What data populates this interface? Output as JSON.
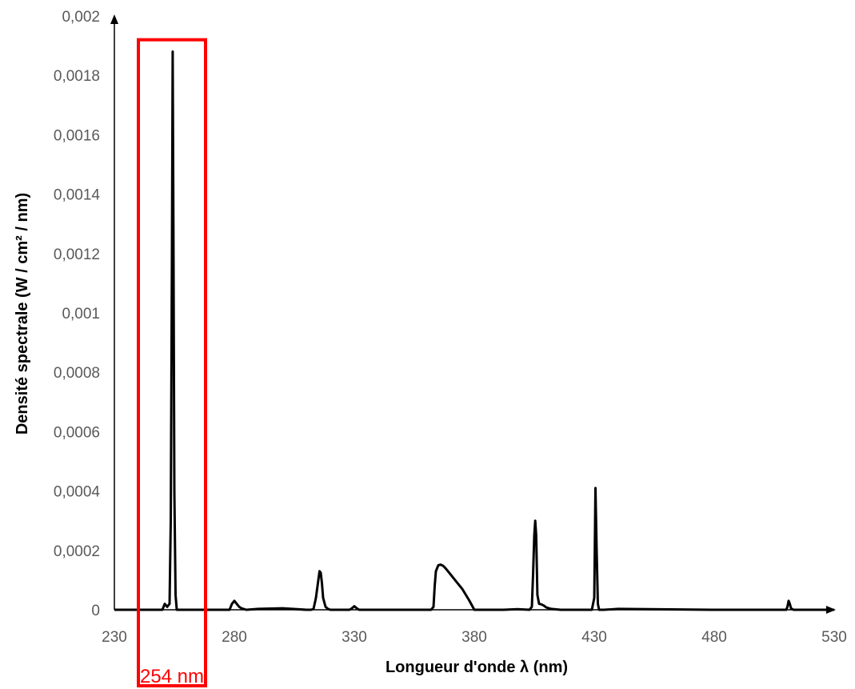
{
  "chart_data": {
    "type": "line",
    "xlabel": "Longueur d'onde λ (nm)",
    "ylabel": "Densité spectrale (W / cm² / nm)",
    "xlim": [
      230,
      530
    ],
    "ylim": [
      0,
      0.002
    ],
    "x_ticks": [
      230,
      280,
      330,
      380,
      430,
      480,
      530
    ],
    "x_tick_labels": [
      "230",
      "280",
      "330",
      "380",
      "430",
      "480",
      "530"
    ],
    "y_ticks": [
      0,
      0.0002,
      0.0004,
      0.0006,
      0.0008,
      0.001,
      0.0012,
      0.0014,
      0.0016,
      0.0018,
      0.002
    ],
    "y_tick_labels": [
      "0",
      "0,0002",
      "0,0004",
      "0,0006",
      "0,0008",
      "0,001",
      "0,0012",
      "0,0014",
      "0,0016",
      "0,0018",
      "0,002"
    ],
    "grid": false,
    "legend": "none",
    "series": [
      {
        "color": "#000000",
        "x": [
          230,
          250,
          251,
          252,
          253,
          253.5,
          254,
          254.3,
          254.6,
          255,
          255.5,
          256,
          257,
          259,
          278,
          279,
          280,
          281,
          282,
          283,
          285,
          290,
          300,
          310,
          312,
          313,
          314,
          315,
          315.5,
          316,
          316.5,
          317,
          318,
          319,
          320,
          328,
          329,
          330,
          331,
          332,
          345,
          362,
          363,
          363.5,
          364,
          365,
          366,
          367,
          368,
          370,
          372,
          375,
          378,
          380,
          392,
          398,
          403,
          404,
          404.5,
          405,
          405.4,
          405.8,
          406.3,
          407,
          408,
          409,
          410,
          412,
          416,
          429,
          430,
          430.5,
          431,
          431.5,
          432,
          433,
          434,
          440,
          480,
          500,
          510,
          510.5,
          511,
          511.5,
          512,
          513,
          515,
          530
        ],
        "y": [
          0,
          0,
          2e-05,
          1e-05,
          2e-05,
          0.0003,
          0.0012,
          0.00188,
          0.0013,
          0.0004,
          5e-05,
          0,
          0,
          0,
          0,
          2e-05,
          3e-05,
          2e-05,
          1e-05,
          5e-06,
          0,
          3e-06,
          5e-06,
          0,
          0,
          3e-06,
          4e-05,
          0.0001,
          0.00013,
          0.000125,
          9e-05,
          4e-05,
          1e-05,
          3e-06,
          0,
          0,
          5e-06,
          1.2e-05,
          5e-06,
          0,
          0,
          0,
          1e-05,
          8e-05,
          0.00013,
          0.00015,
          0.000152,
          0.000148,
          0.00014,
          0.00012,
          0.0001,
          7e-05,
          3e-05,
          0,
          0,
          2e-06,
          0,
          1e-05,
          0.00012,
          0.00025,
          0.0003,
          0.00025,
          5e-05,
          2e-05,
          1.8e-05,
          1.4e-05,
          8e-06,
          3e-06,
          0,
          0,
          4e-05,
          0.00041,
          0.0002,
          2e-05,
          0,
          0,
          0,
          3e-06,
          0,
          0,
          0,
          1e-05,
          3e-05,
          2e-05,
          5e-06,
          0,
          0,
          0
        ]
      }
    ],
    "annotation": {
      "label": "254 nm",
      "color": "#FF0000",
      "x_range": [
        240,
        268
      ],
      "y_range": [
        0,
        0.00192
      ]
    }
  }
}
